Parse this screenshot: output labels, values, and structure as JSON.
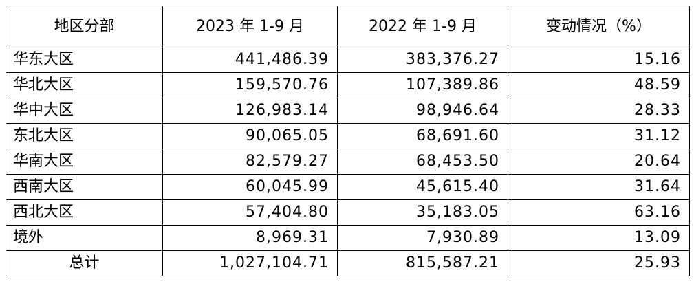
{
  "table": {
    "headers": [
      "地区分部",
      "2023 年 1-9 月",
      "2022 年 1-9 月",
      "变动情况（%）"
    ],
    "rows": [
      {
        "region": "华东大区",
        "y2023": "441,486.39",
        "y2022": "383,376.27",
        "change": "15.16"
      },
      {
        "region": "华北大区",
        "y2023": "159,570.76",
        "y2022": "107,389.86",
        "change": "48.59"
      },
      {
        "region": "华中大区",
        "y2023": "126,983.14",
        "y2022": "98,946.64",
        "change": "28.33"
      },
      {
        "region": "东北大区",
        "y2023": "90,065.05",
        "y2022": "68,691.60",
        "change": "31.12"
      },
      {
        "region": "华南大区",
        "y2023": "82,579.27",
        "y2022": "68,453.50",
        "change": "20.64"
      },
      {
        "region": "西南大区",
        "y2023": "60,045.99",
        "y2022": "45,615.40",
        "change": "31.64"
      },
      {
        "region": "西北大区",
        "y2023": "57,404.80",
        "y2022": "35,183.05",
        "change": "63.16"
      },
      {
        "region": "境外",
        "y2023": "8,969.31",
        "y2022": "7,930.89",
        "change": "13.09"
      }
    ],
    "total": {
      "label": "总计",
      "y2023": "1,027,104.71",
      "y2022": "815,587.21",
      "change": "25.93"
    }
  }
}
